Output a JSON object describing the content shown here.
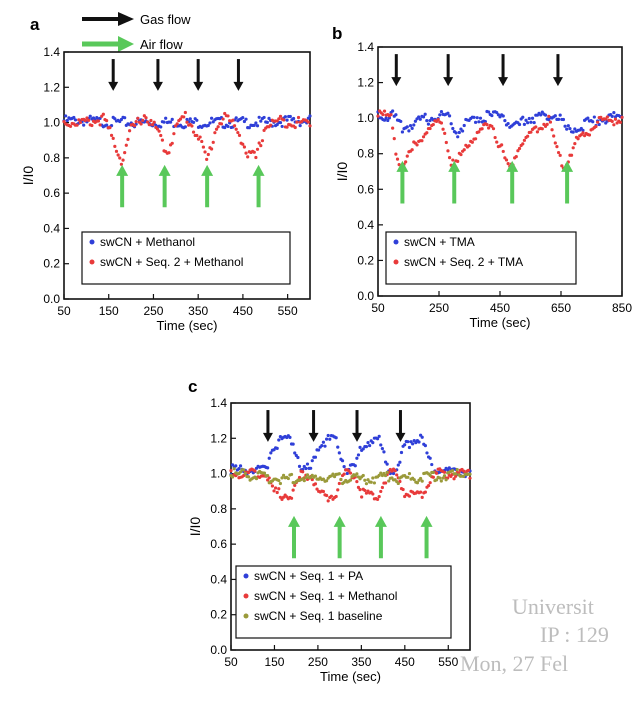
{
  "flow_legend": {
    "gas_label": "Gas flow",
    "air_label": "Air flow",
    "gas_color": "#111111",
    "air_color": "#59c85a"
  },
  "watermark": [
    "Universit",
    "IP : 129",
    "Mon, 27 Fel"
  ],
  "chart_data": [
    {
      "panel": "a",
      "type": "scatter",
      "xlabel": "Time (sec)",
      "ylabel": "I/I0",
      "xlim": [
        50,
        600
      ],
      "ylim": [
        0.0,
        1.4
      ],
      "xticks": [
        "50",
        "150",
        "250",
        "350",
        "450",
        "550"
      ],
      "yticks": [
        "0.0",
        "0.2",
        "0.4",
        "0.6",
        "0.8",
        "1.0",
        "1.2",
        "1.4"
      ],
      "legend_position": "lower-left",
      "gas_flow_times": [
        160,
        260,
        350,
        440
      ],
      "air_flow_times": [
        180,
        275,
        370,
        485
      ],
      "series": [
        {
          "name": "swCN + Methanol",
          "color": "#2f3fd8",
          "legend_label": "swCN + Methanol",
          "x": [
            50,
            100,
            150,
            200,
            250,
            300,
            350,
            400,
            450,
            500,
            550,
            600
          ],
          "y": [
            1.01,
            1.01,
            1.0,
            1.0,
            1.0,
            1.0,
            1.0,
            1.0,
            1.0,
            1.0,
            1.01,
            1.01
          ]
        },
        {
          "name": "swCN + Seq. 2 + Methanol",
          "color": "#e83a3a",
          "legend_label": "swCN + Seq. 2 + Methanol",
          "x": [
            50,
            100,
            140,
            160,
            180,
            200,
            230,
            260,
            280,
            300,
            320,
            350,
            370,
            390,
            410,
            440,
            460,
            480,
            500,
            530,
            560,
            600
          ],
          "y": [
            1.0,
            1.0,
            1.02,
            0.9,
            0.78,
            0.96,
            1.04,
            0.95,
            0.82,
            0.97,
            1.04,
            0.93,
            0.78,
            0.97,
            1.04,
            0.95,
            0.82,
            0.8,
            0.98,
            1.01,
            1.0,
            1.0
          ]
        }
      ]
    },
    {
      "panel": "b",
      "type": "scatter",
      "xlabel": "Time (sec)",
      "ylabel": "I/I0",
      "xlim": [
        50,
        850
      ],
      "ylim": [
        0.0,
        1.4
      ],
      "xticks": [
        "50",
        "250",
        "450",
        "650",
        "850"
      ],
      "yticks": [
        "0.0",
        "0.2",
        "0.4",
        "0.6",
        "0.8",
        "1.0",
        "1.2",
        "1.4"
      ],
      "legend_position": "lower-left",
      "gas_flow_times": [
        110,
        280,
        460,
        640
      ],
      "air_flow_times": [
        130,
        300,
        490,
        670
      ],
      "series": [
        {
          "name": "swCN + TMA",
          "color": "#2f3fd8",
          "legend_label": "swCN + TMA",
          "x": [
            50,
            100,
            130,
            200,
            280,
            310,
            360,
            460,
            490,
            540,
            640,
            670,
            720,
            790,
            850
          ],
          "y": [
            1.02,
            1.01,
            0.94,
            0.99,
            1.02,
            0.92,
            1.0,
            1.02,
            0.93,
            1.0,
            1.02,
            0.93,
            0.96,
            1.0,
            1.01
          ]
        },
        {
          "name": "swCN + Seq. 2 + TMA",
          "color": "#e83a3a",
          "legend_label": "swCN + Seq. 2 + TMA",
          "x": [
            50,
            95,
            110,
            130,
            180,
            260,
            280,
            300,
            340,
            420,
            460,
            480,
            520,
            610,
            640,
            660,
            700,
            780,
            850
          ],
          "y": [
            1.02,
            1.01,
            0.8,
            0.72,
            0.88,
            0.99,
            0.82,
            0.71,
            0.86,
            0.98,
            0.8,
            0.71,
            0.86,
            0.99,
            0.8,
            0.72,
            0.87,
            0.98,
            1.0
          ]
        }
      ]
    },
    {
      "panel": "c",
      "type": "scatter",
      "xlabel": "Time (sec)",
      "ylabel": "I/I0",
      "xlim": [
        50,
        600
      ],
      "ylim": [
        0.0,
        1.4
      ],
      "xticks": [
        "50",
        "150",
        "250",
        "350",
        "450",
        "550"
      ],
      "yticks": [
        "0.0",
        "0.2",
        "0.4",
        "0.6",
        "0.8",
        "1.0",
        "1.2",
        "1.4"
      ],
      "legend_position": "lower-left",
      "gas_flow_times": [
        135,
        240,
        340,
        440
      ],
      "air_flow_times": [
        195,
        300,
        395,
        500
      ],
      "series": [
        {
          "name": "swCN + Seq. 1 + PA",
          "color": "#2f3fd8",
          "legend_label": "swCN + Seq. 1 + PA",
          "x": [
            50,
            130,
            145,
            165,
            190,
            200,
            215,
            235,
            250,
            270,
            290,
            300,
            315,
            335,
            350,
            370,
            390,
            400,
            415,
            435,
            450,
            470,
            490,
            500,
            515,
            600
          ],
          "y": [
            1.02,
            1.02,
            1.15,
            1.19,
            1.19,
            1.12,
            1.02,
            1.03,
            1.16,
            1.19,
            1.19,
            1.12,
            1.02,
            1.03,
            1.16,
            1.19,
            1.19,
            1.12,
            1.02,
            1.03,
            1.16,
            1.19,
            1.19,
            1.12,
            1.02,
            1.01
          ]
        },
        {
          "name": "swCN + Seq. 1 + Methanol",
          "color": "#e83a3a",
          "legend_label": "swCN + Seq. 1 + Methanol",
          "x": [
            50,
            130,
            145,
            165,
            190,
            200,
            215,
            235,
            250,
            270,
            290,
            300,
            315,
            335,
            350,
            370,
            390,
            400,
            415,
            435,
            450,
            470,
            490,
            500,
            515,
            600
          ],
          "y": [
            1.0,
            1.0,
            0.9,
            0.88,
            0.88,
            0.94,
            1.0,
            0.99,
            0.89,
            0.87,
            0.88,
            0.94,
            1.0,
            0.99,
            0.89,
            0.87,
            0.88,
            0.94,
            1.0,
            0.99,
            0.89,
            0.87,
            0.88,
            0.94,
            1.0,
            1.0
          ]
        },
        {
          "name": "swCN + Seq. 1 baseline",
          "color": "#9a9a3a",
          "legend_label": "swCN + Seq. 1 baseline",
          "x": [
            50,
            100,
            150,
            200,
            250,
            300,
            350,
            400,
            450,
            500,
            550,
            600
          ],
          "y": [
            1.0,
            0.99,
            0.97,
            0.97,
            0.98,
            0.97,
            0.97,
            0.98,
            0.97,
            0.98,
            0.99,
            1.0
          ]
        }
      ]
    }
  ]
}
